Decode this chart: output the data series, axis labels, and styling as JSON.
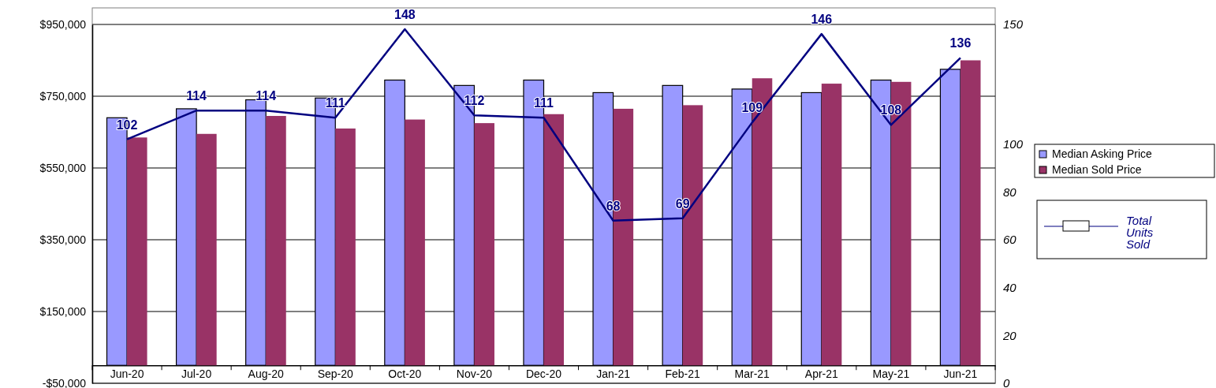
{
  "chart_data": {
    "type": "bar",
    "categories": [
      "Jun-20",
      "Jul-20",
      "Aug-20",
      "Sep-20",
      "Oct-20",
      "Nov-20",
      "Dec-20",
      "Jan-21",
      "Feb-21",
      "Mar-21",
      "Apr-21",
      "May-21",
      "Jun-21"
    ],
    "series": [
      {
        "name": "Median Asking Price",
        "color": "#9999ff",
        "values": [
          690000,
          715000,
          740000,
          745000,
          795000,
          780000,
          795000,
          760000,
          780000,
          770000,
          760000,
          795000,
          825000
        ]
      },
      {
        "name": "Median Sold Price",
        "color": "#993366",
        "values": [
          635000,
          645000,
          695000,
          660000,
          685000,
          675000,
          700000,
          715000,
          725000,
          800000,
          785000,
          790000,
          850000
        ]
      },
      {
        "name": "Total Units Sold",
        "type": "line",
        "axis": "y2",
        "color": "#000080",
        "values": [
          102,
          114,
          114,
          111,
          148,
          112,
          111,
          68,
          69,
          109,
          146,
          108,
          136
        ],
        "value_labels": [
          "102",
          "114",
          "114",
          "111",
          "148",
          "112",
          "111",
          "68",
          "69",
          "109",
          "146",
          "108",
          "136"
        ]
      }
    ],
    "ylim": [
      -50000,
      950000
    ],
    "yticks": [
      {
        "value": -50000,
        "label": "-$50,000"
      },
      {
        "value": 150000,
        "label": "$150,000"
      },
      {
        "value": 350000,
        "label": "$350,000"
      },
      {
        "value": 550000,
        "label": "$550,000"
      },
      {
        "value": 750000,
        "label": "$750,000"
      },
      {
        "value": 950000,
        "label": "$950,000"
      }
    ],
    "y2lim": [
      0,
      150
    ],
    "y2ticks": [
      0,
      20,
      40,
      60,
      80,
      100,
      150
    ],
    "grid": "y",
    "legend": "right",
    "marker": "none"
  }
}
